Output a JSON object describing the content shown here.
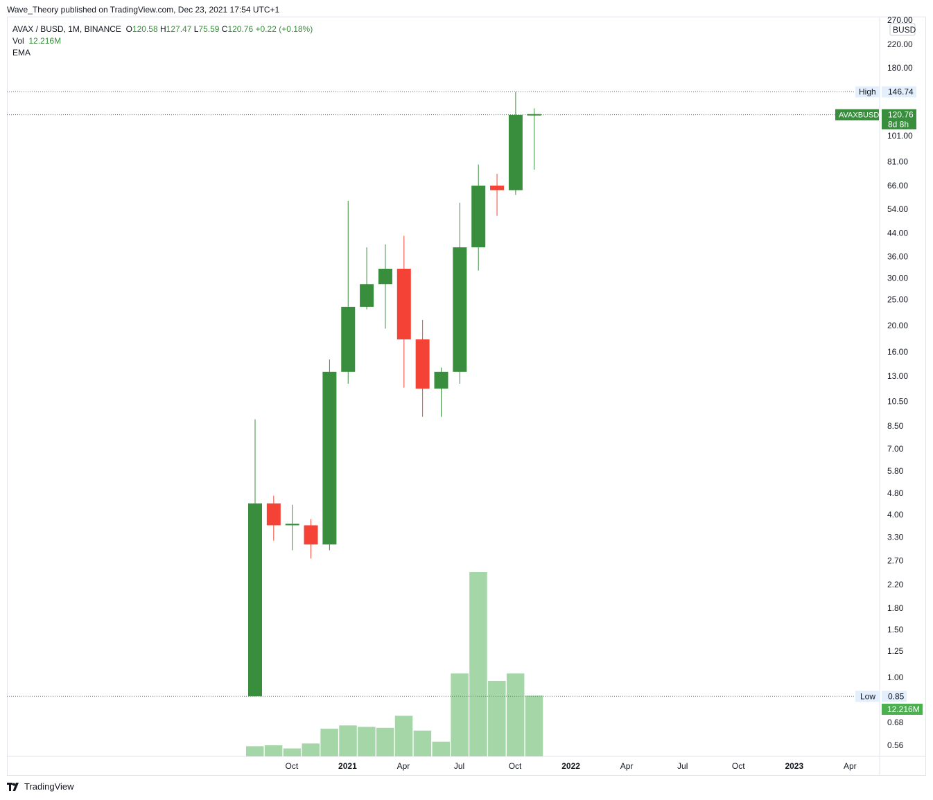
{
  "header": {
    "published": "Wave_Theory published on TradingView.com, Dec 23, 2021 17:54 UTC+1"
  },
  "legend": {
    "symbol": "AVAX / BUSD, 1M, BINANCE",
    "o_label": "O",
    "o_value": "120.58",
    "h_label": "H",
    "h_value": "127.47",
    "l_label": "L",
    "l_value": "75.59",
    "c_label": "C",
    "c_value": "120.76",
    "change": "+0.22 (+0.18%)",
    "vol_label": "Vol",
    "vol_value": "12.216M",
    "ema_label": "EMA"
  },
  "price_axis": {
    "currency": "BUSD",
    "top_clipped_label": "270.00",
    "ticks": [
      "220.00",
      "180.00",
      "101.00",
      "81.00",
      "66.00",
      "54.00",
      "44.00",
      "36.00",
      "30.00",
      "25.00",
      "20.00",
      "16.00",
      "13.00",
      "10.50",
      "8.50",
      "7.00",
      "5.80",
      "4.80",
      "4.00",
      "3.30",
      "2.70",
      "2.20",
      "1.80",
      "1.50",
      "1.25",
      "1.00",
      "0.68",
      "0.56"
    ],
    "high_label": "High",
    "high_value": "146.74",
    "low_label": "Low",
    "low_value": "0.85",
    "current_symbol": "AVAXBUSD",
    "current_value": "120.76",
    "countdown": "8d 8h",
    "volume_value": "12.216M"
  },
  "time_axis": {
    "labels": [
      "Oct",
      "2021",
      "Apr",
      "Jul",
      "Oct",
      "2022",
      "Apr",
      "Jul",
      "Oct",
      "2023",
      "Apr"
    ]
  },
  "colors": {
    "up": "#388e3c",
    "down": "#f44336",
    "volume": "#a5d6a7",
    "axis_text": "#131722"
  },
  "footer": {
    "brand": "TradingView"
  },
  "chart_data": {
    "type": "candlestick",
    "scale": "log",
    "interval": "1M",
    "ylim": [
      0.5,
      270
    ],
    "months": [
      "2020-09",
      "2020-10",
      "2020-11",
      "2020-12",
      "2021-01",
      "2021-02",
      "2021-03",
      "2021-04",
      "2021-05",
      "2021-06",
      "2021-07",
      "2021-08",
      "2021-09",
      "2021-10",
      "2021-11",
      "2021-12"
    ],
    "ohlc": [
      [
        0.85,
        9.0,
        0.85,
        4.4
      ],
      [
        4.4,
        4.7,
        3.2,
        3.65
      ],
      [
        3.65,
        4.35,
        2.95,
        3.7
      ],
      [
        3.65,
        3.85,
        2.75,
        3.1
      ],
      [
        3.1,
        15.0,
        2.95,
        13.5
      ],
      [
        13.5,
        58.0,
        12.2,
        23.5
      ],
      [
        23.5,
        39.0,
        23.0,
        28.5
      ],
      [
        28.5,
        40.0,
        19.5,
        32.5
      ],
      [
        32.5,
        43.0,
        11.8,
        17.8
      ],
      [
        17.8,
        21.0,
        9.2,
        11.7
      ],
      [
        11.7,
        14.0,
        9.2,
        13.5
      ],
      [
        13.5,
        57.0,
        12.2,
        39.0
      ],
      [
        39.0,
        79.0,
        32.0,
        66.0
      ],
      [
        66.0,
        73.0,
        51.0,
        63.5
      ],
      [
        63.5,
        146.74,
        61.0,
        120.58
      ],
      [
        120.58,
        127.47,
        75.59,
        120.76
      ]
    ],
    "volume_relative": [
      0.055,
      0.06,
      0.043,
      0.07,
      0.15,
      0.168,
      0.16,
      0.155,
      0.22,
      0.14,
      0.08,
      0.45,
      1.0,
      0.41,
      0.45,
      0.33
    ]
  }
}
